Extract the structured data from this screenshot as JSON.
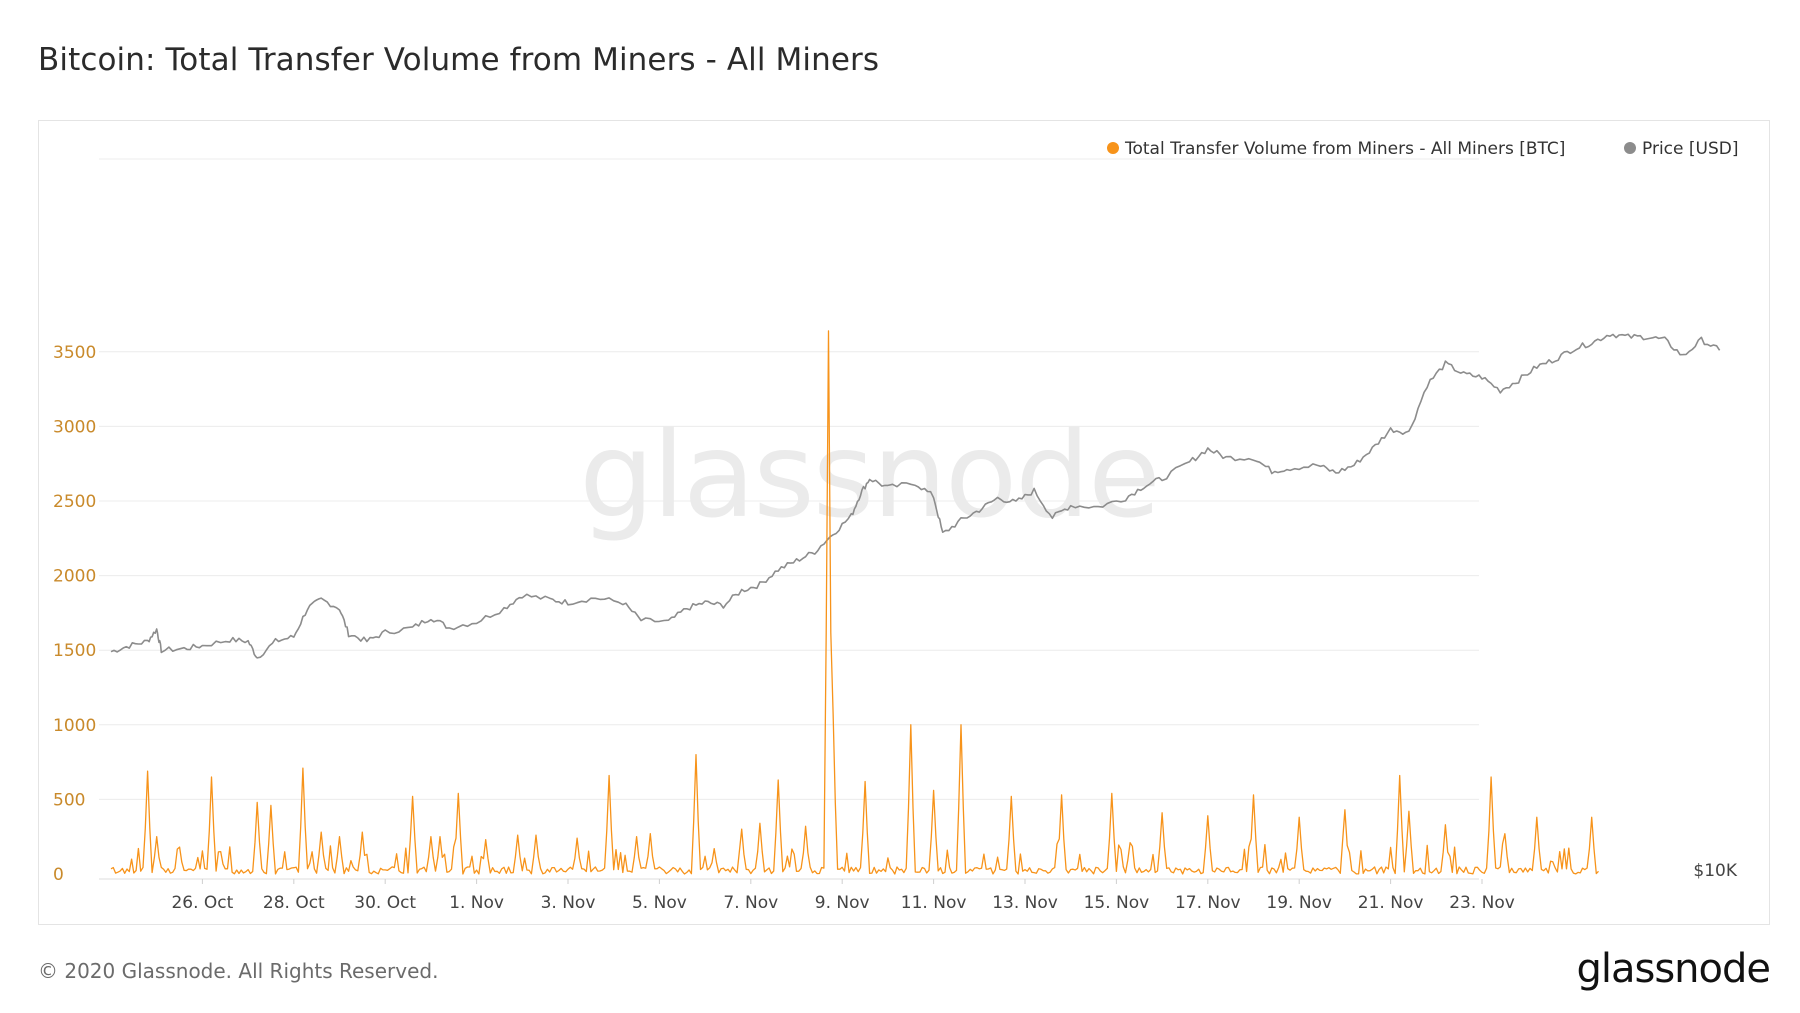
{
  "header": {
    "title": "Bitcoin: Total Transfer Volume from Miners - All Miners"
  },
  "footer": {
    "copyright": "© 2020 Glassnode. All Rights Reserved.",
    "logo_text": "glassnode"
  },
  "watermark": "glassnode",
  "colors": {
    "volume": "#f7931a",
    "price": "#8c8c8c",
    "grid": "#ececec",
    "y_tick_text": "#c98a2b"
  },
  "chart_data": {
    "type": "line",
    "x_tick_labels": [
      "26. Oct",
      "28. Oct",
      "30. Oct",
      "1. Nov",
      "3. Nov",
      "5. Nov",
      "7. Nov",
      "9. Nov",
      "11. Nov",
      "13. Nov",
      "15. Nov",
      "17. Nov",
      "19. Nov",
      "21. Nov",
      "23. Nov"
    ],
    "y_left": {
      "ticks": [
        "0",
        "500",
        "1000",
        "1500",
        "2000",
        "2500",
        "3000",
        "3500"
      ],
      "range": [
        0,
        3700
      ]
    },
    "y_right": {
      "ticks": [
        "$10K"
      ]
    },
    "x_range_days": [
      "24. Oct",
      "23. Nov"
    ],
    "legend": {
      "placement": "top-right",
      "items": [
        "Total Transfer Volume from Miners - All Miners [BTC]",
        "Price [USD]"
      ]
    },
    "series": [
      {
        "name": "Total Transfer Volume from Miners - All Miners [BTC]",
        "axis": "left",
        "baseline": 30,
        "spikes_day_value": [
          [
            0.8,
            690
          ],
          [
            1.0,
            250
          ],
          [
            1.5,
            180
          ],
          [
            2.2,
            650
          ],
          [
            2.4,
            150
          ],
          [
            3.2,
            480
          ],
          [
            3.5,
            460
          ],
          [
            4.2,
            710
          ],
          [
            4.6,
            280
          ],
          [
            5.0,
            250
          ],
          [
            5.5,
            280
          ],
          [
            6.6,
            520
          ],
          [
            7.0,
            250
          ],
          [
            7.2,
            250
          ],
          [
            7.6,
            540
          ],
          [
            8.2,
            230
          ],
          [
            8.9,
            260
          ],
          [
            9.3,
            260
          ],
          [
            10.2,
            240
          ],
          [
            10.9,
            660
          ],
          [
            11.5,
            250
          ],
          [
            11.8,
            270
          ],
          [
            12.8,
            800
          ],
          [
            13.2,
            170
          ],
          [
            13.8,
            300
          ],
          [
            14.2,
            340
          ],
          [
            14.6,
            630
          ],
          [
            15.2,
            320
          ],
          [
            15.7,
            3640
          ],
          [
            15.8,
            1080
          ],
          [
            16.5,
            620
          ],
          [
            17.5,
            1000
          ],
          [
            18.0,
            560
          ],
          [
            18.6,
            1000
          ],
          [
            19.7,
            520
          ],
          [
            20.8,
            530
          ],
          [
            21.9,
            540
          ],
          [
            22.3,
            210
          ],
          [
            23.0,
            410
          ],
          [
            24.0,
            390
          ],
          [
            25.0,
            530
          ],
          [
            26.0,
            380
          ],
          [
            27.0,
            430
          ],
          [
            28.2,
            660
          ],
          [
            28.4,
            420
          ],
          [
            29.2,
            330
          ],
          [
            30.2,
            650
          ],
          [
            30.5,
            270
          ],
          [
            31.2,
            380
          ],
          [
            32.4,
            380
          ]
        ]
      },
      {
        "name": "Price [USD]",
        "axis": "right",
        "display_scale": [
          0,
          3700
        ],
        "day_value": [
          [
            0.0,
            1490
          ],
          [
            0.4,
            1530
          ],
          [
            0.8,
            1560
          ],
          [
            1.0,
            1640
          ],
          [
            1.1,
            1500
          ],
          [
            1.6,
            1510
          ],
          [
            2.0,
            1530
          ],
          [
            2.6,
            1570
          ],
          [
            3.0,
            1560
          ],
          [
            3.2,
            1450
          ],
          [
            3.6,
            1560
          ],
          [
            4.0,
            1590
          ],
          [
            4.3,
            1780
          ],
          [
            4.6,
            1840
          ],
          [
            5.0,
            1780
          ],
          [
            5.2,
            1610
          ],
          [
            5.6,
            1560
          ],
          [
            6.0,
            1620
          ],
          [
            6.6,
            1650
          ],
          [
            7.0,
            1720
          ],
          [
            7.4,
            1650
          ],
          [
            8.0,
            1690
          ],
          [
            8.6,
            1780
          ],
          [
            9.0,
            1870
          ],
          [
            9.6,
            1840
          ],
          [
            10.0,
            1820
          ],
          [
            10.6,
            1850
          ],
          [
            11.2,
            1820
          ],
          [
            11.6,
            1700
          ],
          [
            12.2,
            1690
          ],
          [
            12.6,
            1780
          ],
          [
            13.0,
            1820
          ],
          [
            13.4,
            1800
          ],
          [
            13.8,
            1900
          ],
          [
            14.2,
            1940
          ],
          [
            14.6,
            2040
          ],
          [
            15.0,
            2100
          ],
          [
            15.4,
            2160
          ],
          [
            15.8,
            2280
          ],
          [
            16.2,
            2400
          ],
          [
            16.4,
            2550
          ],
          [
            16.6,
            2650
          ],
          [
            17.0,
            2590
          ],
          [
            17.6,
            2620
          ],
          [
            18.0,
            2530
          ],
          [
            18.2,
            2280
          ],
          [
            18.6,
            2370
          ],
          [
            19.0,
            2440
          ],
          [
            19.4,
            2520
          ],
          [
            19.8,
            2490
          ],
          [
            20.2,
            2570
          ],
          [
            20.6,
            2390
          ],
          [
            21.0,
            2470
          ],
          [
            21.6,
            2460
          ],
          [
            22.2,
            2520
          ],
          [
            22.6,
            2600
          ],
          [
            23.0,
            2650
          ],
          [
            23.6,
            2760
          ],
          [
            24.0,
            2850
          ],
          [
            24.4,
            2790
          ],
          [
            25.0,
            2790
          ],
          [
            25.4,
            2700
          ],
          [
            25.8,
            2720
          ],
          [
            26.4,
            2740
          ],
          [
            26.8,
            2690
          ],
          [
            27.2,
            2740
          ],
          [
            27.6,
            2850
          ],
          [
            28.0,
            2980
          ],
          [
            28.4,
            2960
          ],
          [
            28.8,
            3280
          ],
          [
            29.2,
            3420
          ],
          [
            29.6,
            3350
          ],
          [
            30.0,
            3330
          ],
          [
            30.4,
            3240
          ],
          [
            30.8,
            3310
          ],
          [
            31.2,
            3400
          ],
          [
            31.6,
            3450
          ],
          [
            32.0,
            3520
          ],
          [
            32.4,
            3560
          ],
          [
            32.8,
            3620
          ],
          [
            33.2,
            3600
          ],
          [
            33.6,
            3600
          ],
          [
            34.0,
            3580
          ],
          [
            34.4,
            3470
          ],
          [
            34.8,
            3580
          ],
          [
            35.2,
            3510
          ]
        ]
      }
    ],
    "grid": true
  }
}
